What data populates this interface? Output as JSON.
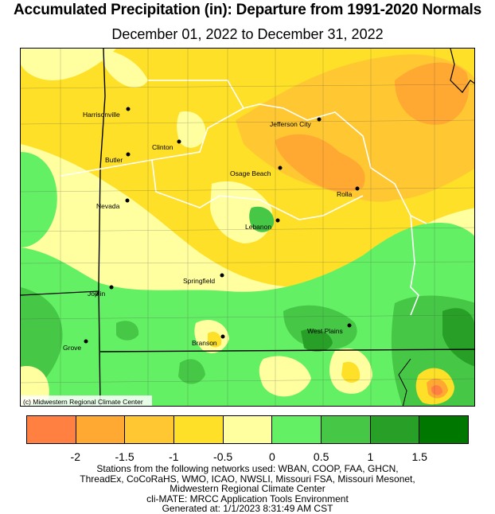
{
  "title": "Accumulated Precipitation (in): Departure from 1991-2020 Normals",
  "subtitle": "December 01, 2022 to December 31, 2022",
  "credit": "(c) Midwestern Regional Climate Center",
  "cities": [
    {
      "name": "Harrisonville"
    },
    {
      "name": "Jefferson City"
    },
    {
      "name": "Clinton"
    },
    {
      "name": "Butler"
    },
    {
      "name": "Osage Beach"
    },
    {
      "name": "Rolla"
    },
    {
      "name": "Nevada"
    },
    {
      "name": "Lebanon"
    },
    {
      "name": "Springfield"
    },
    {
      "name": "Joplin"
    },
    {
      "name": "West Plains"
    },
    {
      "name": "Branson"
    },
    {
      "name": "Grove"
    }
  ],
  "legend": {
    "colors": [
      "#ff8040",
      "#ffa832",
      "#ffc832",
      "#ffe028",
      "#ffffa0",
      "#64f064",
      "#46c846",
      "#28a028",
      "#007800"
    ],
    "ticks": [
      "-2",
      "-1.5",
      "-1",
      "-0.5",
      "0",
      "0.5",
      "1",
      "1.5"
    ]
  },
  "footer": [
    "Stations from the following networks used: WBAN, COOP, FAA, GHCN,",
    "ThreadEx, CoCoRaHS, WMO, ICAO, NWSLI, Missouri FSA, Missouri Mesonet,",
    "Midwestern Regional Climate Center",
    "cli-MATE: MRCC Application Tools Environment",
    "Generated at: 1/1/2023 8:31:49 AM CST"
  ]
}
